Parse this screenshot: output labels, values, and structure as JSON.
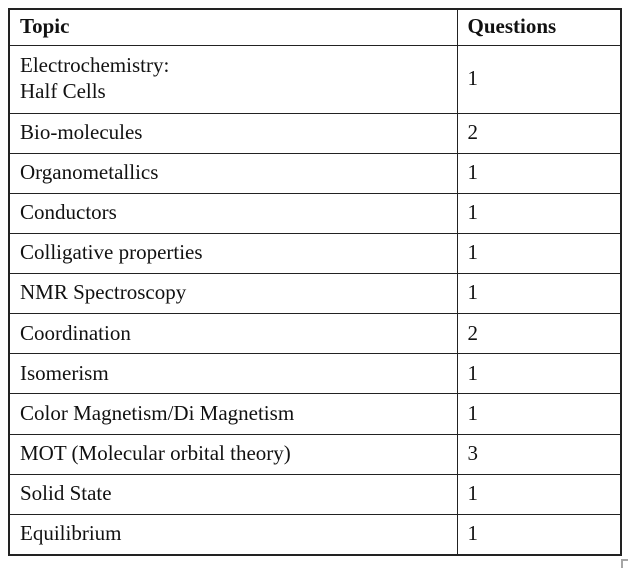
{
  "table": {
    "columns": [
      {
        "label": "Topic"
      },
      {
        "label": "Questions"
      }
    ],
    "rows": [
      {
        "topic": "Electrochemistry:\nHalf Cells",
        "questions": "1"
      },
      {
        "topic": "Bio-molecules",
        "questions": "2"
      },
      {
        "topic": "Organometallics",
        "questions": "1"
      },
      {
        "topic": "Conductors",
        "questions": "1"
      },
      {
        "topic": "Colligative properties",
        "questions": "1"
      },
      {
        "topic": "NMR Spectroscopy",
        "questions": "1"
      },
      {
        "topic": "Coordination",
        "questions": "2"
      },
      {
        "topic": "Isomerism",
        "questions": "1"
      },
      {
        "topic": "Color Magnetism/Di Magnetism",
        "questions": "1"
      },
      {
        "topic": "MOT (Molecular orbital theory)",
        "questions": "3"
      },
      {
        "topic": "Solid State",
        "questions": "1"
      },
      {
        "topic": "Equilibrium",
        "questions": "1"
      }
    ],
    "colors": {
      "border": "#222222",
      "text": "#111111",
      "background": "#ffffff",
      "corner_mark": "#a6a6a6"
    }
  }
}
